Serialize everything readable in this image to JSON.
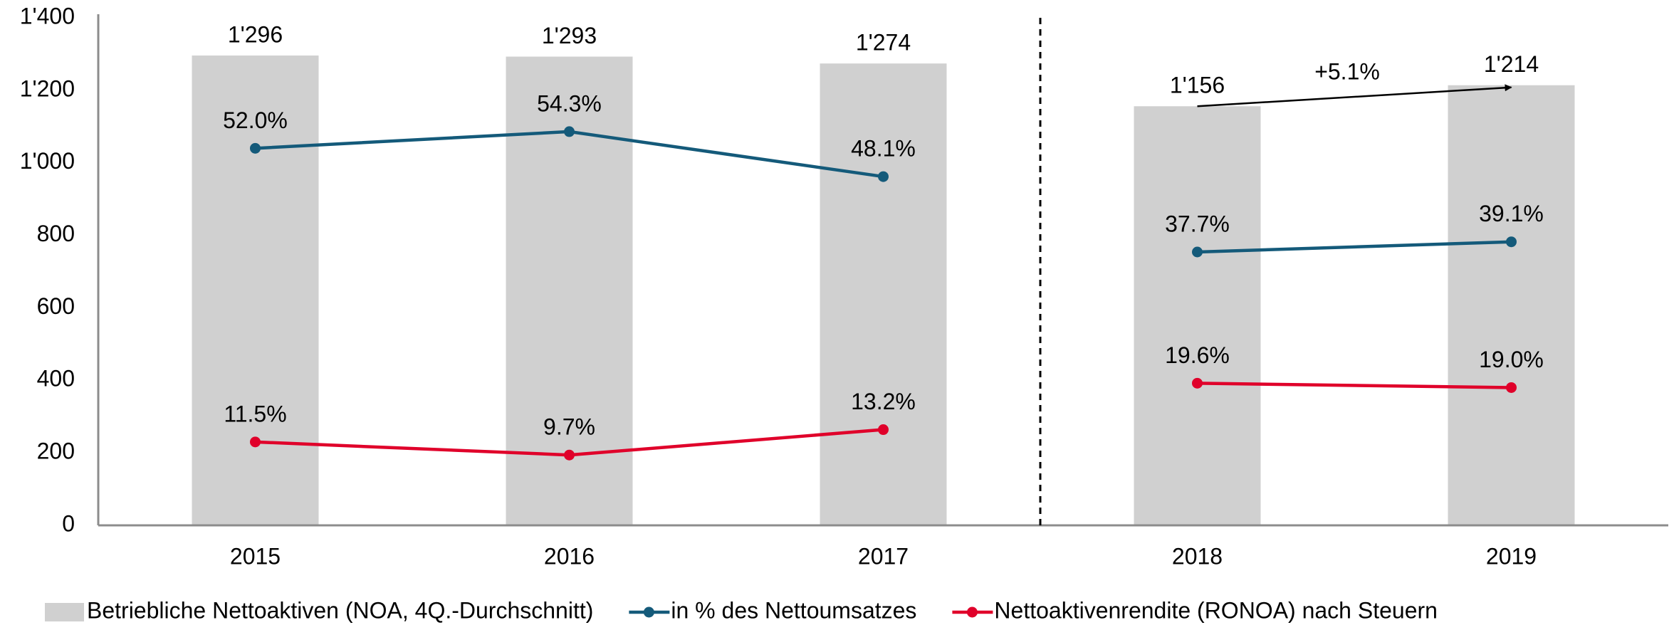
{
  "chart_data": {
    "type": "bar",
    "categories": [
      "2015",
      "2016",
      "2017",
      "2018",
      "2019"
    ],
    "ylim": [
      0,
      1400
    ],
    "yticks": [
      0,
      200,
      400,
      600,
      800,
      {
        "value": 1000,
        "label": "1'000"
      },
      {
        "value": 1200,
        "label": "1'200"
      },
      {
        "value": 1400,
        "label": "1'400"
      }
    ],
    "y2lim": [
      0,
      70
    ],
    "divider_after": 2,
    "grid": false,
    "legend": "bottom",
    "series": [
      {
        "name": "Betriebliche Nettoaktiven (NOA, 4Q.-Durchschnitt)",
        "type": "bar",
        "color": "#d0d0d0",
        "values": [
          1296,
          1293,
          1274,
          1156,
          1214
        ],
        "value_labels": [
          "1'296",
          "1'293",
          "1'274",
          "1'156",
          "1'214"
        ]
      },
      {
        "name": "in % des Nettoumsatzes",
        "type": "line",
        "axis": "y2",
        "color": "#145a7a",
        "values": [
          52.0,
          54.3,
          48.1,
          37.7,
          39.1
        ],
        "value_labels": [
          "52.0%",
          "54.3%",
          "48.1%",
          "37.7%",
          "39.1%"
        ]
      },
      {
        "name": "Nettoaktivenrendite (RONOA) nach Steuern",
        "type": "line",
        "axis": "y2",
        "color": "#e0002a",
        "values": [
          11.5,
          9.7,
          13.2,
          19.6,
          19.0
        ],
        "value_labels": [
          "11.5%",
          "9.7%",
          "13.2%",
          "19.6%",
          "19.0%"
        ]
      }
    ],
    "annotations": [
      {
        "text": "+5.1%"
      }
    ]
  }
}
